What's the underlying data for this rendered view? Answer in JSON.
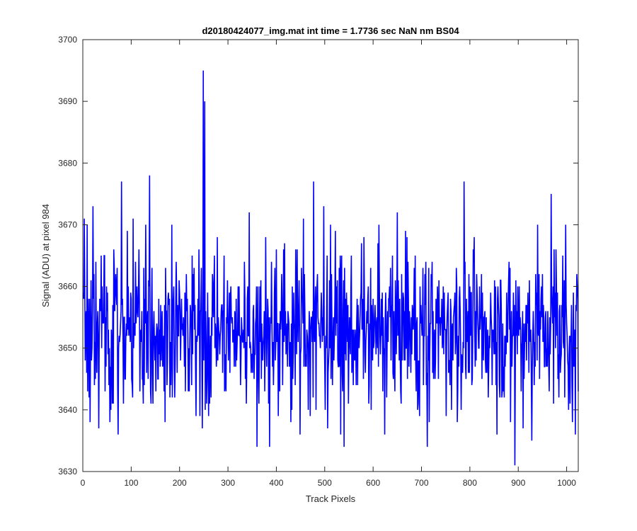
{
  "chart_data": {
    "type": "line",
    "title": "d20180424077_img.mat int time = 1.7736 sec  NaN nm BS04",
    "xlabel": "Track Pixels",
    "ylabel": "Signal (ADU) at pixel 984",
    "xlim": [
      0,
      1024
    ],
    "ylim": [
      3630,
      3700
    ],
    "xticks": [
      0,
      100,
      200,
      300,
      400,
      500,
      600,
      700,
      800,
      900,
      1000
    ],
    "yticks": [
      3630,
      3640,
      3650,
      3660,
      3670,
      3680,
      3690,
      3700
    ],
    "grid": false,
    "legend": "none",
    "color": "#0000ff",
    "series_generation": {
      "n_points": 1024,
      "x_start": 1,
      "mean": 3653,
      "noise_spread": 6,
      "clip_min": 3631,
      "clip_max": 3695
    },
    "series_key_points": [
      {
        "x": 3,
        "y": 3671
      },
      {
        "x": 9,
        "y": 3670
      },
      {
        "x": 15,
        "y": 3638
      },
      {
        "x": 21,
        "y": 3673
      },
      {
        "x": 33,
        "y": 3637
      },
      {
        "x": 44,
        "y": 3665
      },
      {
        "x": 56,
        "y": 3638
      },
      {
        "x": 64,
        "y": 3666
      },
      {
        "x": 73,
        "y": 3636
      },
      {
        "x": 80,
        "y": 3677
      },
      {
        "x": 84,
        "y": 3641
      },
      {
        "x": 92,
        "y": 3669
      },
      {
        "x": 118,
        "y": 3643
      },
      {
        "x": 130,
        "y": 3670
      },
      {
        "x": 138,
        "y": 3678
      },
      {
        "x": 170,
        "y": 3638
      },
      {
        "x": 184,
        "y": 3670
      },
      {
        "x": 212,
        "y": 3643
      },
      {
        "x": 226,
        "y": 3665
      },
      {
        "x": 234,
        "y": 3639
      },
      {
        "x": 242,
        "y": 3639
      },
      {
        "x": 249,
        "y": 3695
      },
      {
        "x": 252,
        "y": 3690
      },
      {
        "x": 256,
        "y": 3641
      },
      {
        "x": 260,
        "y": 3639
      },
      {
        "x": 272,
        "y": 3665
      },
      {
        "x": 296,
        "y": 3643
      },
      {
        "x": 318,
        "y": 3648
      },
      {
        "x": 344,
        "y": 3672
      },
      {
        "x": 354,
        "y": 3645
      },
      {
        "x": 360,
        "y": 3634
      },
      {
        "x": 378,
        "y": 3668
      },
      {
        "x": 386,
        "y": 3634
      },
      {
        "x": 400,
        "y": 3666
      },
      {
        "x": 430,
        "y": 3638
      },
      {
        "x": 440,
        "y": 3666
      },
      {
        "x": 449,
        "y": 3636
      },
      {
        "x": 456,
        "y": 3671
      },
      {
        "x": 470,
        "y": 3639
      },
      {
        "x": 477,
        "y": 3677
      },
      {
        "x": 482,
        "y": 3640
      },
      {
        "x": 498,
        "y": 3673
      },
      {
        "x": 506,
        "y": 3637
      },
      {
        "x": 512,
        "y": 3670
      },
      {
        "x": 524,
        "y": 3660
      },
      {
        "x": 532,
        "y": 3665
      },
      {
        "x": 540,
        "y": 3634
      },
      {
        "x": 548,
        "y": 3657
      },
      {
        "x": 556,
        "y": 3646
      },
      {
        "x": 568,
        "y": 3644
      },
      {
        "x": 576,
        "y": 3667
      },
      {
        "x": 590,
        "y": 3660
      },
      {
        "x": 596,
        "y": 3640
      },
      {
        "x": 604,
        "y": 3657
      },
      {
        "x": 612,
        "y": 3670
      },
      {
        "x": 624,
        "y": 3636
      },
      {
        "x": 632,
        "y": 3658
      },
      {
        "x": 640,
        "y": 3665
      },
      {
        "x": 660,
        "y": 3648
      },
      {
        "x": 670,
        "y": 3668
      },
      {
        "x": 685,
        "y": 3663
      },
      {
        "x": 696,
        "y": 3639
      },
      {
        "x": 712,
        "y": 3634
      },
      {
        "x": 720,
        "y": 3662
      },
      {
        "x": 744,
        "y": 3652
      },
      {
        "x": 756,
        "y": 3646
      },
      {
        "x": 772,
        "y": 3663
      },
      {
        "x": 788,
        "y": 3677
      },
      {
        "x": 800,
        "y": 3660
      },
      {
        "x": 816,
        "y": 3655
      },
      {
        "x": 832,
        "y": 3648
      },
      {
        "x": 846,
        "y": 3644
      },
      {
        "x": 860,
        "y": 3655
      },
      {
        "x": 884,
        "y": 3638
      },
      {
        "x": 893,
        "y": 3631
      },
      {
        "x": 902,
        "y": 3660
      },
      {
        "x": 910,
        "y": 3637
      },
      {
        "x": 928,
        "y": 3635
      },
      {
        "x": 940,
        "y": 3670
      },
      {
        "x": 956,
        "y": 3655
      },
      {
        "x": 968,
        "y": 3675
      },
      {
        "x": 978,
        "y": 3666
      },
      {
        "x": 988,
        "y": 3648
      },
      {
        "x": 998,
        "y": 3670
      },
      {
        "x": 1004,
        "y": 3640
      },
      {
        "x": 1012,
        "y": 3638
      },
      {
        "x": 1018,
        "y": 3636
      },
      {
        "x": 1022,
        "y": 3660
      }
    ]
  }
}
